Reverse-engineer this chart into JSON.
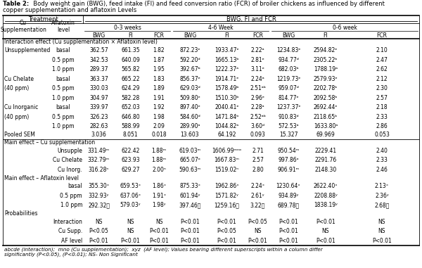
{
  "title_bold": "Table 2:",
  "title_rest": "  Body weight gain (BWG), feed intake (FI) and feed conversion ratio (FCR) of broiler chickens as influenced by different\ncopper supplementation and aflatoxin Levels",
  "section_interaction": "Interaction effect (Cu supplementation × Aflatoxin level)",
  "data_rows": [
    [
      "Unsupplemented",
      "basal",
      "362.57",
      "661.35",
      "1.82",
      "872.23ᵉ",
      "1933.47ᵉ",
      "2.22ᵃ",
      "1234.83ᵉ",
      "2594.82ᵉ",
      "2.10"
    ],
    [
      "",
      "0.5 ppm",
      "342.53",
      "640.09",
      "1.87",
      "592.20ᵈ",
      "1665.13ᵇ",
      "2.81ᵉ",
      "934.77ᵈ",
      "2305.22ᵇ",
      "2.47"
    ],
    [
      "",
      "1.0 ppm",
      "289.37",
      "565.82",
      "1.95",
      "392.67ᵇ",
      "1222.37ᵃ",
      "3.11ᵉ",
      "682.03ᵇ",
      "1788.19ᵃ",
      "2.62"
    ],
    [
      "Cu Chelate",
      "basal",
      "363.37",
      "665.22",
      "1.83",
      "856.37ᵉ",
      "1914.71ᵉ",
      "2.24ᵃ",
      "1219.73ᵉ",
      "2579.93ᵉ",
      "2.12"
    ],
    [
      "(40 ppm)",
      "0.5 ppm",
      "330.03",
      "624.29",
      "1.89",
      "629.03ᵈ",
      "1578.49ᵇ",
      "2.51ᵃᵇ",
      "959.07ᵈ",
      "2202.78ᵇ",
      "2.30"
    ],
    [
      "",
      "1.0 ppm",
      "304.97",
      "582.28",
      "1.91",
      "509.80ᵉ",
      "1510.30ᵇ",
      "2.96ᵉ",
      "814.77ᵉ",
      "2092.58ᵇ",
      "2.57"
    ],
    [
      "Cu Inorganic",
      "basal",
      "339.97",
      "652.03",
      "1.92",
      "897.40ᵉ",
      "2040.41ᵉ",
      "2.28ᵃ",
      "1237.37ᵉ",
      "2692.44ᵉ",
      "2.18"
    ],
    [
      "(40 ppm)",
      "0.5 ppm",
      "326.23",
      "646.80",
      "1.98",
      "584.60ᵈ",
      "1471.84ᵇ",
      "2.52ᵃᵇ",
      "910.83ᵈ",
      "2118.65ᵇ",
      "2.33"
    ],
    [
      "",
      "1.0 ppm",
      "282.63",
      "588.99",
      "2.09",
      "289.90ᵃ",
      "1044.82ᵃ",
      "3.60ᵈ",
      "572.53ᵃ",
      "1633.80ᵃ",
      "2.86"
    ]
  ],
  "pooled_sem": [
    "Pooled SEM",
    "",
    "3.036",
    "8.051",
    "0.018",
    "13.603",
    "64.192",
    "0.093",
    "15.327",
    "69.969",
    "0.053"
  ],
  "section_cu": "Main effect – Cu supplementation",
  "cu_rows": [
    [
      "Unsupple",
      "331.49ᵐ",
      "622.42",
      "1.88ᵐ",
      "619.03ᵐ",
      "1606.99ᵐⁿᵒ",
      "2.71",
      "950.54ᵐ",
      "2229.41",
      "2.40"
    ],
    [
      "Cu Chelate",
      "332.79ᵐ",
      "623.93",
      "1.88ᵐ",
      "665.07ᵒ",
      "1667.83ᵐ",
      "2.57",
      "997.86ᵒ",
      "2291.76",
      "2.33"
    ],
    [
      "Cu Inorg.",
      "316.28ⁿ",
      "629.27",
      "2.00ⁿ",
      "590.63ᵐ",
      "1519.02ⁿ",
      "2.80",
      "906.91ᵐ",
      "2148.30",
      "2.46"
    ]
  ],
  "section_af": "Main effect – Aflatoxin level",
  "af_rows": [
    [
      "basal",
      "355.30ˣ",
      "659.53ˣ",
      "1.86ˣ",
      "875.33ˣ",
      "1962.86ˣ",
      "2.24ˣ",
      "1230.64ˣ",
      "2622.40ˣ",
      "2.13ˣ"
    ],
    [
      "0.5 ppm",
      "332.93ʸ",
      "637.06ˣ",
      "1.91ˣ",
      "601.94ʸ",
      "1571.82ʸ",
      "2.61ʸ",
      "934.89ʸ",
      "2208.88ʸ",
      "2.36ʸ"
    ],
    [
      "1.0 ppm",
      "292.32ᵺ",
      "579.03ʸ",
      "1.98ʸ",
      "397.46ᵺ",
      "1259.16ᵺ",
      "3.22ᵺ",
      "689.78ᵺ",
      "1838.19ʸ",
      "2.68ᵺ"
    ]
  ],
  "section_prob": "Probabilities",
  "prob_rows": [
    [
      "Interaction",
      "NS",
      "NS",
      "NS",
      "P<0.01",
      "P<0.01",
      "P<0.05",
      "P<0.01",
      "P<0.01",
      "NS"
    ],
    [
      "Cu Supp.",
      "P<0.05",
      "NS",
      "P<0.01",
      "P<0.01",
      "P<0.05",
      "NS",
      "P<0.01",
      "NS",
      "NS"
    ],
    [
      "AF level",
      "P<0.01",
      "P<0.01",
      "P<0.01",
      "P<0.01",
      "P<0.01",
      "P<0.01",
      "P<0.01",
      "P<0.01",
      "P<0.01"
    ]
  ],
  "footnote": "abcde (interaction);  mno (Cu supplementation);  xyz  (AF level); Values bearing different superscripts within a column differ\nsignificantly (P<0.05), (P<0.01); NS- Non Significant",
  "bg_color": "#ffffff"
}
